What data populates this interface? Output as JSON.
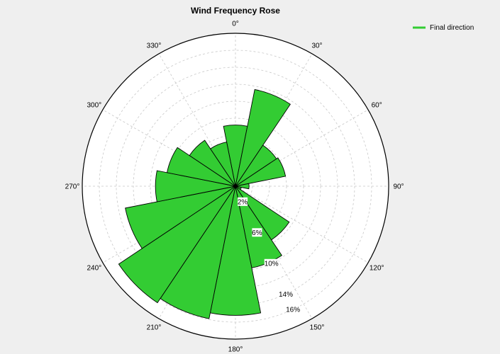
{
  "chart_data": {
    "type": "polar-bar",
    "title": "Wind Frequency Rose",
    "angle_labels": [
      "0°",
      "30°",
      "60°",
      "90°",
      "120°",
      "150°",
      "180°",
      "210°",
      "240°",
      "270°",
      "300°",
      "330°"
    ],
    "angles_deg": [
      0,
      30,
      60,
      90,
      120,
      150,
      180,
      210,
      240,
      270,
      300,
      330
    ],
    "radial_tick_labels": [
      "2%",
      "6%",
      "10%",
      "14%",
      "16%"
    ],
    "radial_ticks": [
      2,
      6,
      10,
      14,
      16
    ],
    "radial_max": 18,
    "ring_count": 9,
    "series": [
      {
        "name": "Final direction",
        "color": "#33cc33",
        "sector_width_deg": 22.5,
        "directions_deg": [
          0,
          22.5,
          45,
          67.5,
          90,
          112.5,
          135,
          157.5,
          180,
          202.5,
          225,
          247.5,
          270,
          292.5,
          315,
          337.5
        ],
        "values": [
          7.2,
          11.6,
          5.8,
          6.0,
          1.6,
          0.7,
          7.6,
          9.8,
          15.2,
          15.9,
          16.5,
          13.2,
          9.4,
          8.2,
          6.5,
          5.3
        ]
      }
    ],
    "legend": {
      "position": "top-right",
      "label": "Final direction"
    },
    "grid": true
  }
}
